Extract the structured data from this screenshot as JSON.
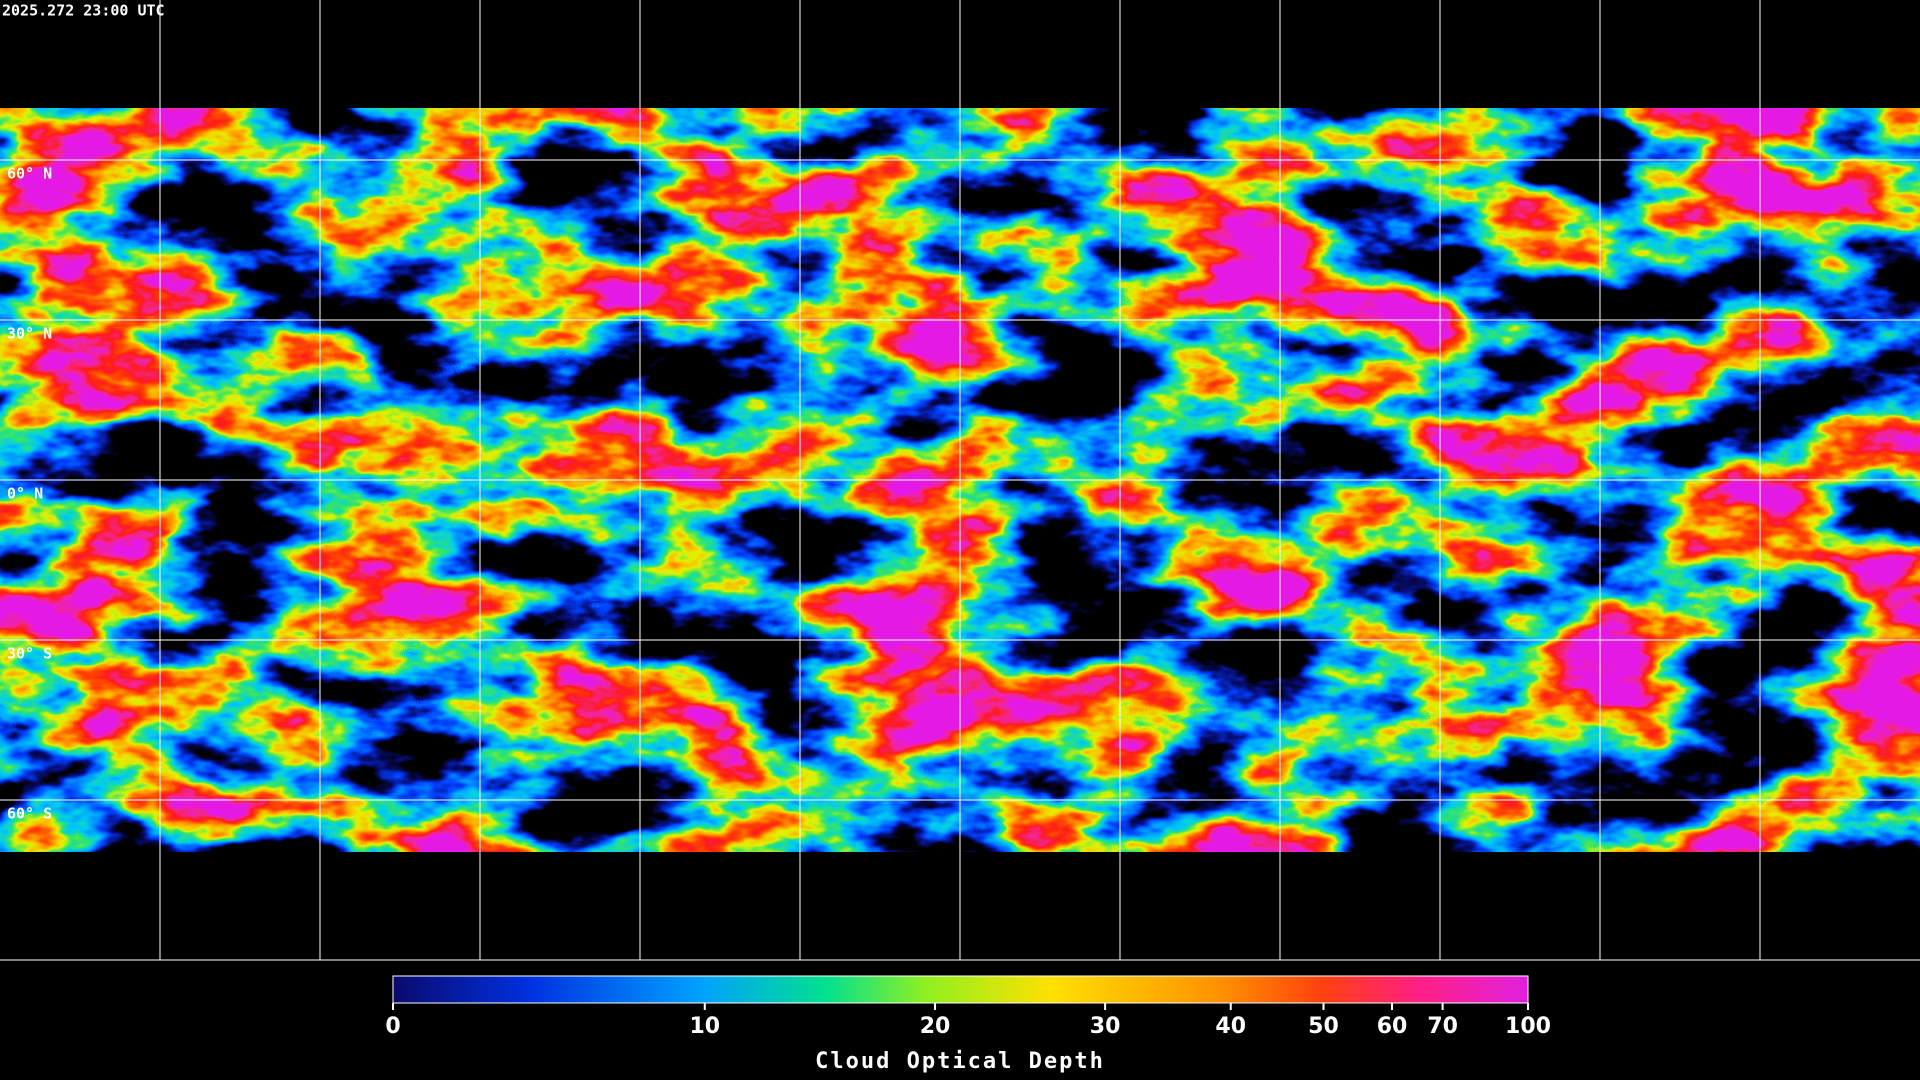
{
  "header": {
    "timestamp": "2025.272 23:00 UTC"
  },
  "map": {
    "latitude_labels": [
      "60° N",
      "30° N",
      "0° N",
      "30° S",
      "60° S"
    ]
  },
  "colorbar": {
    "title": "Cloud Optical Depth",
    "range": [
      0,
      100
    ],
    "ticks": [
      0,
      10,
      20,
      30,
      40,
      50,
      60,
      70,
      100
    ]
  }
}
